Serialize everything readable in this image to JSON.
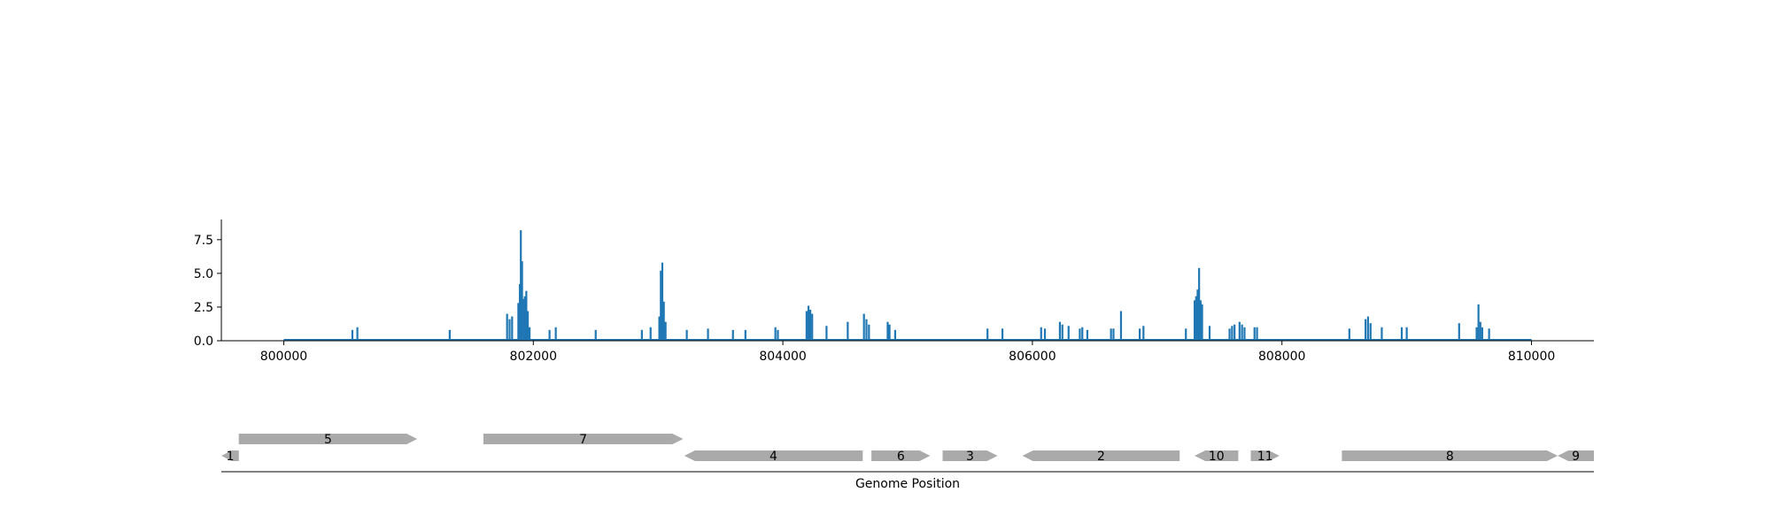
{
  "colors": {
    "bar": "#1f77b4",
    "gene": "#aaaaaa",
    "axis": "#000000",
    "background": "#ffffff"
  },
  "chart_data": [
    {
      "type": "bar",
      "title": "",
      "xlabel": "",
      "ylabel": "",
      "xlim": [
        799500,
        810500
      ],
      "ylim": [
        0,
        9
      ],
      "xticks": [
        800000,
        802000,
        804000,
        806000,
        808000,
        810000
      ],
      "xtick_labels": [
        "800000",
        "802000",
        "804000",
        "806000",
        "808000",
        "810000"
      ],
      "yticks": [
        0.0,
        2.5,
        5.0,
        7.5
      ],
      "ytick_labels": [
        "0.0",
        "2.5",
        "5.0",
        "7.5"
      ],
      "baseline": {
        "start": 800000,
        "end": 810000
      },
      "grid": false,
      "points": [
        {
          "x": 800550,
          "y": 0.8
        },
        {
          "x": 800590,
          "y": 1.0
        },
        {
          "x": 801330,
          "y": 0.8
        },
        {
          "x": 801790,
          "y": 2.0
        },
        {
          "x": 801810,
          "y": 1.6
        },
        {
          "x": 801830,
          "y": 1.8
        },
        {
          "x": 801880,
          "y": 2.8
        },
        {
          "x": 801892,
          "y": 4.2
        },
        {
          "x": 801900,
          "y": 8.2
        },
        {
          "x": 801910,
          "y": 5.9
        },
        {
          "x": 801920,
          "y": 3.1
        },
        {
          "x": 801932,
          "y": 3.3
        },
        {
          "x": 801944,
          "y": 3.7
        },
        {
          "x": 801956,
          "y": 2.2
        },
        {
          "x": 801970,
          "y": 1.0
        },
        {
          "x": 802130,
          "y": 0.8
        },
        {
          "x": 802180,
          "y": 1.0
        },
        {
          "x": 802500,
          "y": 0.8
        },
        {
          "x": 802870,
          "y": 0.8
        },
        {
          "x": 802940,
          "y": 1.0
        },
        {
          "x": 803010,
          "y": 1.8
        },
        {
          "x": 803022,
          "y": 5.2
        },
        {
          "x": 803034,
          "y": 5.8
        },
        {
          "x": 803046,
          "y": 2.9
        },
        {
          "x": 803060,
          "y": 1.4
        },
        {
          "x": 803230,
          "y": 0.8
        },
        {
          "x": 803400,
          "y": 0.9
        },
        {
          "x": 803600,
          "y": 0.8
        },
        {
          "x": 803700,
          "y": 0.8
        },
        {
          "x": 803940,
          "y": 1.0
        },
        {
          "x": 803960,
          "y": 0.8
        },
        {
          "x": 804190,
          "y": 2.2
        },
        {
          "x": 804205,
          "y": 2.6
        },
        {
          "x": 804220,
          "y": 2.3
        },
        {
          "x": 804235,
          "y": 2.0
        },
        {
          "x": 804350,
          "y": 1.1
        },
        {
          "x": 804520,
          "y": 1.4
        },
        {
          "x": 804650,
          "y": 2.0
        },
        {
          "x": 804670,
          "y": 1.6
        },
        {
          "x": 804690,
          "y": 1.2
        },
        {
          "x": 804840,
          "y": 1.4
        },
        {
          "x": 804855,
          "y": 1.2
        },
        {
          "x": 804900,
          "y": 0.8
        },
        {
          "x": 805640,
          "y": 0.9
        },
        {
          "x": 805760,
          "y": 0.9
        },
        {
          "x": 806070,
          "y": 1.0
        },
        {
          "x": 806100,
          "y": 0.9
        },
        {
          "x": 806220,
          "y": 1.4
        },
        {
          "x": 806240,
          "y": 1.2
        },
        {
          "x": 806290,
          "y": 1.1
        },
        {
          "x": 806380,
          "y": 0.9
        },
        {
          "x": 806400,
          "y": 1.0
        },
        {
          "x": 806440,
          "y": 0.8
        },
        {
          "x": 806630,
          "y": 0.9
        },
        {
          "x": 806650,
          "y": 0.9
        },
        {
          "x": 806710,
          "y": 2.2
        },
        {
          "x": 806860,
          "y": 0.9
        },
        {
          "x": 806890,
          "y": 1.1
        },
        {
          "x": 807230,
          "y": 0.9
        },
        {
          "x": 807300,
          "y": 3.0
        },
        {
          "x": 807312,
          "y": 3.3
        },
        {
          "x": 807324,
          "y": 3.8
        },
        {
          "x": 807336,
          "y": 5.4
        },
        {
          "x": 807348,
          "y": 3.0
        },
        {
          "x": 807360,
          "y": 2.7
        },
        {
          "x": 807420,
          "y": 1.1
        },
        {
          "x": 807580,
          "y": 0.9
        },
        {
          "x": 807600,
          "y": 1.1
        },
        {
          "x": 807620,
          "y": 1.2
        },
        {
          "x": 807660,
          "y": 1.4
        },
        {
          "x": 807680,
          "y": 1.2
        },
        {
          "x": 807700,
          "y": 1.0
        },
        {
          "x": 807780,
          "y": 1.0
        },
        {
          "x": 807800,
          "y": 1.0
        },
        {
          "x": 808540,
          "y": 0.9
        },
        {
          "x": 808670,
          "y": 1.6
        },
        {
          "x": 808690,
          "y": 1.8
        },
        {
          "x": 808710,
          "y": 1.3
        },
        {
          "x": 808800,
          "y": 1.0
        },
        {
          "x": 808960,
          "y": 1.0
        },
        {
          "x": 809000,
          "y": 1.0
        },
        {
          "x": 809420,
          "y": 1.3
        },
        {
          "x": 809560,
          "y": 1.0
        },
        {
          "x": 809575,
          "y": 2.7
        },
        {
          "x": 809590,
          "y": 1.4
        },
        {
          "x": 809605,
          "y": 1.0
        },
        {
          "x": 809660,
          "y": 0.9
        }
      ]
    },
    {
      "type": "gene_track",
      "xlabel": "Genome Position",
      "xlim": [
        799500,
        810500
      ],
      "genes": [
        {
          "label": "1",
          "start": 799500,
          "end": 799640,
          "strand": "-",
          "row": 0
        },
        {
          "label": "5",
          "start": 799640,
          "end": 801070,
          "strand": "+",
          "row": 1
        },
        {
          "label": "7",
          "start": 801600,
          "end": 803200,
          "strand": "+",
          "row": 1
        },
        {
          "label": "4",
          "start": 803210,
          "end": 804640,
          "strand": "-",
          "row": 0
        },
        {
          "label": "6",
          "start": 804710,
          "end": 805180,
          "strand": "+",
          "row": 0
        },
        {
          "label": "3",
          "start": 805280,
          "end": 805720,
          "strand": "+",
          "row": 0
        },
        {
          "label": "2",
          "start": 805920,
          "end": 807180,
          "strand": "-",
          "row": 0
        },
        {
          "label": "10",
          "start": 807300,
          "end": 807650,
          "strand": "-",
          "row": 0
        },
        {
          "label": "11",
          "start": 807750,
          "end": 807980,
          "strand": "+",
          "row": 0
        },
        {
          "label": "8",
          "start": 808480,
          "end": 810210,
          "strand": "+",
          "row": 0
        },
        {
          "label": "9",
          "start": 810210,
          "end": 810500,
          "strand": "-",
          "row": 0
        }
      ]
    }
  ]
}
